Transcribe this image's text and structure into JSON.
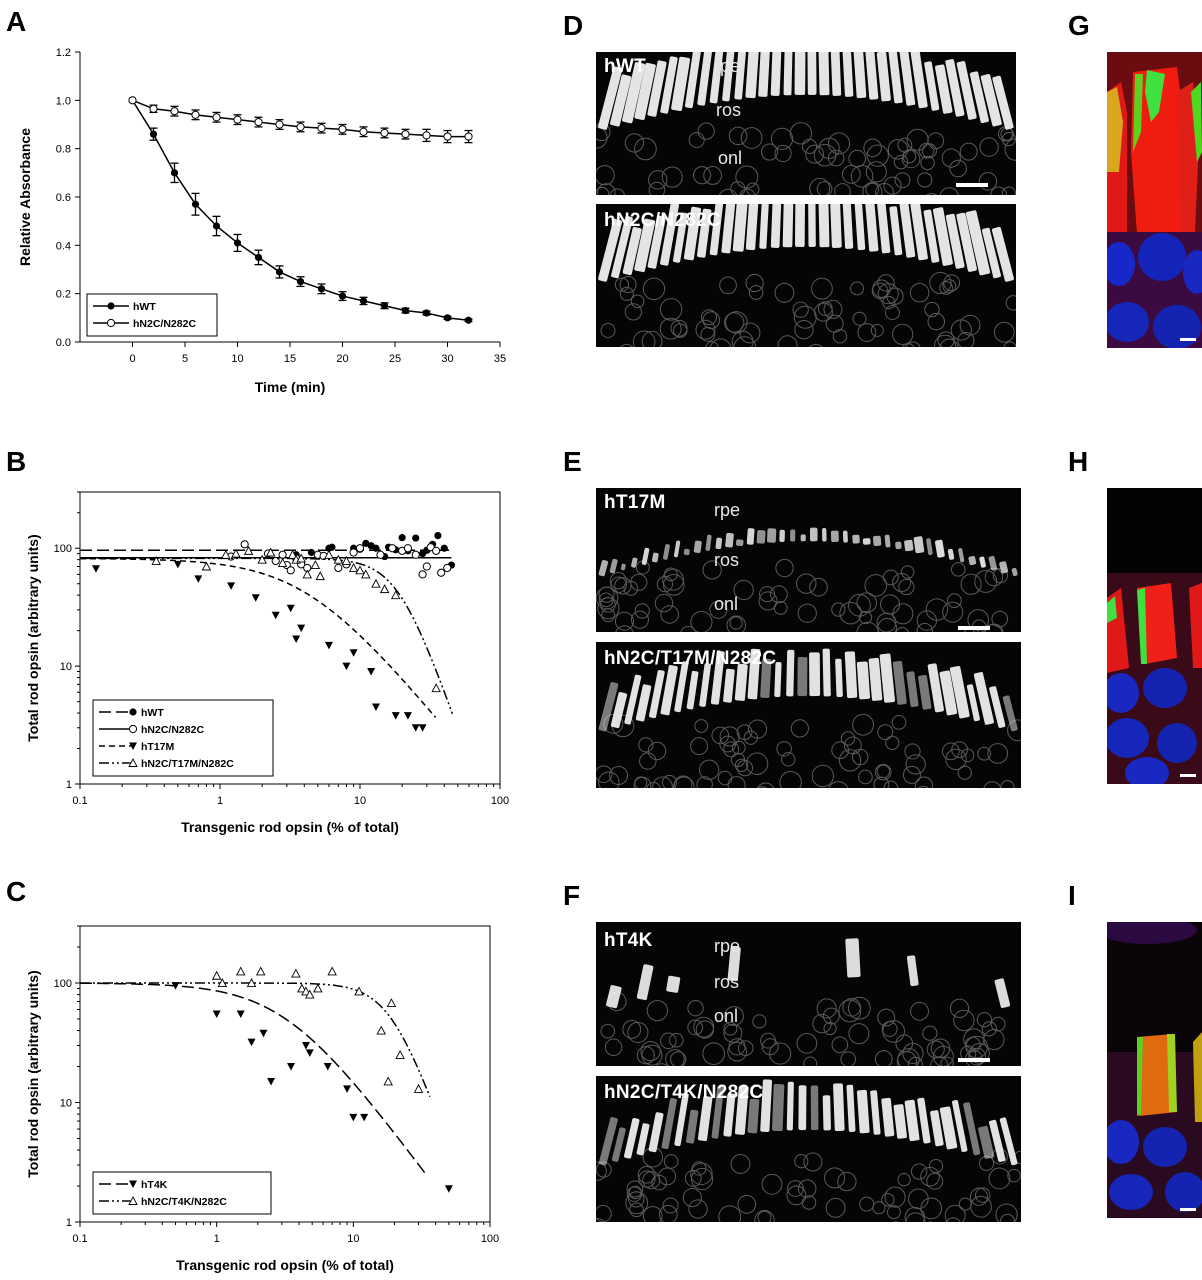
{
  "panels": {
    "A": "A",
    "B": "B",
    "C": "C",
    "D": "D",
    "E": "E",
    "F": "F",
    "G": "G",
    "H": "H",
    "I": "I"
  },
  "chart_data": [
    {
      "panel": "A",
      "type": "line",
      "xlabel": "Time (min)",
      "ylabel": "Relative Absorbance",
      "xlim": [
        -5,
        35
      ],
      "ylim": [
        0.0,
        1.2
      ],
      "xticks": [
        "0",
        "5",
        "10",
        "15",
        "20",
        "25",
        "30",
        "35"
      ],
      "yticks": [
        "0.0",
        "0.2",
        "0.4",
        "0.6",
        "0.8",
        "1.0",
        "1.2"
      ],
      "legend_position": "bottom-left",
      "series": [
        {
          "name": "hWT",
          "marker": "filled-circle",
          "x": [
            0,
            2,
            4,
            6,
            8,
            10,
            12,
            14,
            16,
            18,
            20,
            22,
            24,
            26,
            28,
            30,
            32
          ],
          "y": [
            1.0,
            0.86,
            0.7,
            0.57,
            0.48,
            0.41,
            0.35,
            0.29,
            0.25,
            0.22,
            0.19,
            0.17,
            0.15,
            0.13,
            0.12,
            0.1,
            0.09
          ],
          "err": [
            0,
            0.025,
            0.04,
            0.045,
            0.04,
            0.035,
            0.03,
            0.025,
            0.02,
            0.02,
            0.018,
            0.015,
            0.012,
            0.01,
            0.008,
            0.006,
            0.005
          ]
        },
        {
          "name": "hN2C/N282C",
          "marker": "open-circle",
          "x": [
            0,
            2,
            4,
            6,
            8,
            10,
            12,
            14,
            16,
            18,
            20,
            22,
            24,
            26,
            28,
            30,
            32
          ],
          "y": [
            1.0,
            0.965,
            0.955,
            0.94,
            0.93,
            0.92,
            0.91,
            0.9,
            0.89,
            0.885,
            0.88,
            0.87,
            0.865,
            0.86,
            0.855,
            0.85,
            0.85
          ],
          "err": [
            0,
            0.015,
            0.02,
            0.02,
            0.02,
            0.02,
            0.02,
            0.02,
            0.02,
            0.02,
            0.02,
            0.02,
            0.02,
            0.02,
            0.025,
            0.025,
            0.025
          ]
        }
      ]
    },
    {
      "panel": "B",
      "type": "scatter",
      "xlabel": "Transgenic rod opsin (% of total)",
      "ylabel": "Total rod  opsin (arbitrary units)",
      "xscale": "log",
      "yscale": "log",
      "xlim": [
        0.1,
        100
      ],
      "ylim": [
        1,
        300
      ],
      "xticks": [
        "0.1",
        "1",
        "10",
        "100"
      ],
      "yticks": [
        "1",
        "10",
        "100"
      ],
      "legend_position": "bottom-left",
      "series": [
        {
          "name": "hWT",
          "marker": "filled-circle",
          "line": "long-dash",
          "x": [
            3.5,
            4.5,
            6,
            6.3,
            9,
            10,
            11,
            12,
            13,
            15,
            16,
            18,
            20,
            22,
            25,
            28,
            30,
            33,
            36,
            40,
            45
          ],
          "y": [
            88,
            92,
            100,
            102,
            100,
            98,
            110,
            105,
            100,
            85,
            102,
            97,
            123,
            95,
            122,
            90,
            96,
            108,
            128,
            100,
            72
          ],
          "fit": [
            [
              0.1,
              96
            ],
            [
              45,
              96
            ]
          ]
        },
        {
          "name": "hN2C/N282C",
          "marker": "open-circle",
          "line": "solid",
          "x": [
            1.2,
            1.5,
            2.2,
            2.5,
            2.8,
            3.0,
            3.2,
            3.5,
            3.8,
            4.2,
            5.0,
            5.5,
            7,
            8,
            9,
            10,
            14,
            17,
            20,
            22,
            25,
            28,
            30,
            32,
            35,
            38,
            42
          ],
          "y": [
            85,
            108,
            90,
            78,
            88,
            72,
            65,
            82,
            73,
            68,
            88,
            86,
            68,
            73,
            92,
            100,
            88,
            100,
            95,
            100,
            88,
            60,
            70,
            102,
            95,
            62,
            68
          ],
          "fit": [
            [
              0.1,
              83
            ],
            [
              45,
              83
            ]
          ]
        },
        {
          "name": "hT17M",
          "marker": "filled-triangle-down",
          "line": "short-dash",
          "x": [
            0.13,
            0.5,
            0.7,
            1.2,
            1.8,
            2.5,
            3.2,
            3.5,
            3.8,
            6,
            8,
            9,
            12,
            13,
            18,
            22,
            25,
            28
          ],
          "y": [
            67,
            73,
            55,
            48,
            38,
            27,
            31,
            17,
            21,
            15,
            10,
            13,
            9,
            4.5,
            3.8,
            3.8,
            3.0,
            3.0
          ],
          "fit_type": "decay",
          "fit_xmax": 35,
          "fit_k": 0.11
        },
        {
          "name": "hN2C/T17M/N282C",
          "marker": "open-triangle-up",
          "line": "dash-dot-dot",
          "x": [
            0.35,
            0.8,
            1.1,
            1.3,
            1.6,
            2.0,
            2.3,
            2.8,
            3.3,
            3.5,
            3.8,
            4.2,
            4.8,
            5.2,
            6,
            7,
            8,
            9,
            10,
            11,
            13,
            15,
            18,
            35
          ],
          "y": [
            78,
            70,
            88,
            90,
            95,
            80,
            92,
            75,
            88,
            80,
            82,
            60,
            72,
            58,
            88,
            80,
            78,
            68,
            65,
            60,
            50,
            45,
            40,
            6.5
          ],
          "fit_type": "decay",
          "fit_xmax": 46,
          "fit_k": 0.035
        }
      ]
    },
    {
      "panel": "C",
      "type": "scatter",
      "xlabel": "Transgenic rod opsin (% of total)",
      "ylabel": "Total rod opsin (arbitrary units)",
      "xscale": "log",
      "yscale": "log",
      "xlim": [
        0.1,
        100
      ],
      "ylim": [
        1,
        300
      ],
      "xticks": [
        "0.1",
        "1",
        "10",
        "100"
      ],
      "yticks": [
        "1",
        "10",
        "100"
      ],
      "legend_position": "bottom-left",
      "series": [
        {
          "name": "hT4K",
          "marker": "filled-triangle-down",
          "line": "long-dash",
          "x": [
            0.5,
            1.0,
            1.5,
            1.8,
            2.2,
            2.5,
            3.5,
            4.5,
            4.8,
            6.5,
            9,
            10,
            12,
            50
          ],
          "y": [
            95,
            55,
            55,
            32,
            38,
            15,
            20,
            30,
            26,
            20,
            13,
            7.5,
            7.5,
            1.9
          ],
          "fit_type": "decay",
          "fit_xmax": 35,
          "fit_k": 0.055
        },
        {
          "name": "hN2C/T4K/N282C",
          "marker": "open-triangle-up",
          "line": "dash-dot-dot",
          "x": [
            1.0,
            1.1,
            1.5,
            1.8,
            2.1,
            3.8,
            4.2,
            4.5,
            4.8,
            5.5,
            7,
            11,
            16,
            18,
            19,
            22,
            30
          ],
          "y": [
            115,
            100,
            125,
            100,
            125,
            120,
            90,
            85,
            80,
            90,
            125,
            85,
            40,
            15,
            68,
            25,
            13
          ],
          "fit_type": "decay",
          "fit_xmax": 38,
          "fit_k": 0.45,
          "fit_base": 100
        }
      ]
    }
  ],
  "micrographs": {
    "D_top": {
      "genotype": "hWT",
      "layers": [
        "rpe",
        "ros",
        "onl"
      ]
    },
    "D_bottom": {
      "genotype": "hN2C/N282C"
    },
    "E_top": {
      "genotype": "hT17M",
      "layers": [
        "rpe",
        "ros",
        "onl"
      ]
    },
    "E_bottom": {
      "genotype": "hN2C/T17M/N282C"
    },
    "F_top": {
      "genotype": "hT4K",
      "layers": [
        "rpe",
        "ros",
        "onl"
      ]
    },
    "F_bottom": {
      "genotype": "hN2C/T4K/N282C"
    }
  },
  "colors": {
    "confocal_red": "#e01010",
    "confocal_green": "#30e030",
    "confocal_blue": "#1020c0",
    "micrograph_bg": "#050505"
  }
}
